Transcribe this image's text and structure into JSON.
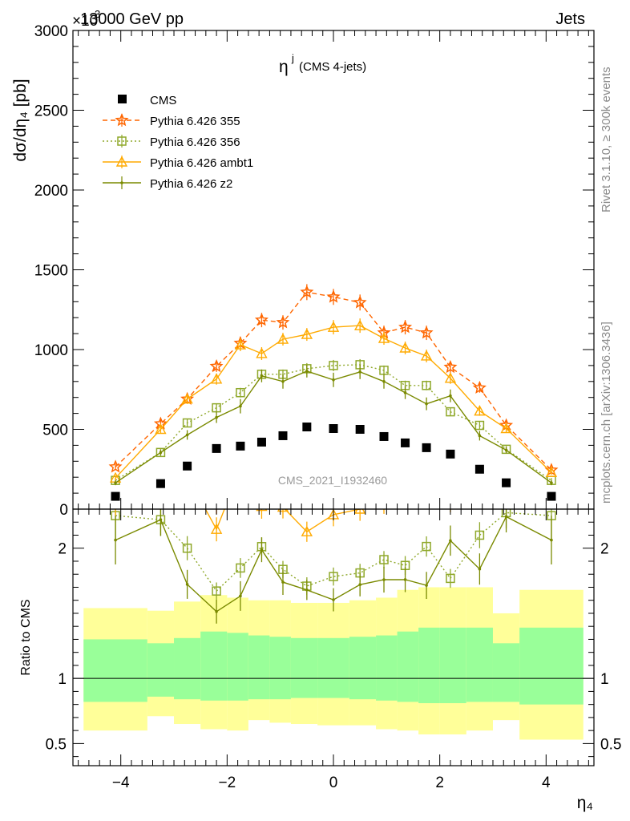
{
  "header": {
    "energy_label": "13000 GeV pp",
    "exponent_label": "×10",
    "exponent_power": "3",
    "process_label": "Jets"
  },
  "side_labels": {
    "rivet": "Rivet 3.1.10, ≥ 300k events",
    "source": "mcplots.cern.ch [arXiv:1306.3436]"
  },
  "watermark": "CMS_2021_I1932460",
  "chart_data": {
    "type": "line",
    "title_main": "η",
    "title_sup": "j",
    "title_note": "(CMS 4-jets)",
    "ylabel": "dσ/dη₄ [pb]",
    "xlabel": "η₄",
    "ratio_ylabel": "Ratio to CMS",
    "xlim": [
      -4.9,
      4.9
    ],
    "ylim": [
      0,
      3000
    ],
    "ratio_ylim": [
      0.33,
      2.3
    ],
    "x_ticks": [
      -4,
      -2,
      0,
      2,
      4
    ],
    "x_tick_labels": [
      "−4",
      "−2",
      "0",
      "2",
      "4"
    ],
    "y_ticks": [
      0,
      500,
      1000,
      1500,
      2000,
      2500,
      3000
    ],
    "y_tick_labels": [
      "0",
      "500",
      "1000",
      "1500",
      "2000",
      "2500",
      "3000"
    ],
    "ratio_ticks": [
      0.5,
      1,
      2
    ],
    "ratio_tick_labels": [
      "0.5",
      "1",
      "2"
    ],
    "x": [
      -4.1,
      -3.25,
      -2.75,
      -2.2,
      -1.75,
      -1.35,
      -0.95,
      -0.5,
      0,
      0.5,
      0.95,
      1.35,
      1.75,
      2.2,
      2.75,
      3.25,
      4.1
    ],
    "bin_edges": [
      -4.7,
      -3.5,
      -3.0,
      -2.5,
      -2.0,
      -1.6,
      -1.2,
      -0.8,
      -0.3,
      0.3,
      0.8,
      1.2,
      1.6,
      2.0,
      2.5,
      3.0,
      3.5,
      4.7
    ],
    "data": {
      "name": "CMS",
      "values": [
        80,
        160,
        270,
        380,
        395,
        420,
        460,
        515,
        505,
        500,
        455,
        415,
        385,
        345,
        250,
        165,
        80
      ]
    },
    "series": [
      {
        "name": "Pythia 6.426 355",
        "color": "#ff6600",
        "dash": "6,4",
        "marker": "star",
        "values": [
          265,
          535,
          690,
          895,
          1040,
          1185,
          1170,
          1360,
          1330,
          1295,
          1105,
          1140,
          1105,
          890,
          760,
          525,
          245
        ],
        "errors": [
          20,
          25,
          30,
          35,
          40,
          45,
          45,
          50,
          50,
          50,
          45,
          45,
          45,
          35,
          30,
          25,
          20
        ]
      },
      {
        "name": "Pythia 6.426 356",
        "color": "#8fa82a",
        "dash": "2,3",
        "marker": "square",
        "values": [
          180,
          355,
          540,
          635,
          730,
          845,
          845,
          880,
          900,
          905,
          870,
          775,
          775,
          610,
          525,
          375,
          180
        ],
        "errors": [
          15,
          20,
          25,
          25,
          30,
          30,
          30,
          35,
          35,
          35,
          30,
          30,
          30,
          25,
          25,
          20,
          15
        ]
      },
      {
        "name": "Pythia 6.426 ambt1",
        "color": "#ffaa00",
        "dash": "",
        "marker": "triangle",
        "values": [
          195,
          500,
          690,
          815,
          1030,
          975,
          1065,
          1095,
          1140,
          1150,
          1070,
          1010,
          960,
          820,
          615,
          505,
          230
        ],
        "errors": [
          15,
          25,
          30,
          35,
          40,
          40,
          40,
          40,
          45,
          45,
          40,
          40,
          40,
          35,
          30,
          25,
          15
        ]
      },
      {
        "name": "Pythia 6.426 z2",
        "color": "#7a8a00",
        "dash": "",
        "marker": "dot",
        "values": [
          165,
          355,
          465,
          575,
          645,
          835,
          800,
          865,
          810,
          860,
          800,
          730,
          660,
          710,
          460,
          370,
          165
        ],
        "errors": [
          15,
          20,
          30,
          35,
          45,
          40,
          45,
          40,
          45,
          45,
          45,
          40,
          40,
          40,
          30,
          20,
          15
        ]
      }
    ],
    "ratio_bands": {
      "inner_color": "#99ff99",
      "outer_color": "#ffff99",
      "inner_hi": [
        1.3,
        1.27,
        1.31,
        1.36,
        1.35,
        1.33,
        1.32,
        1.31,
        1.31,
        1.32,
        1.33,
        1.36,
        1.39,
        1.39,
        1.39,
        1.27,
        1.39
      ],
      "inner_lo": [
        0.82,
        0.86,
        0.84,
        0.83,
        0.83,
        0.84,
        0.84,
        0.85,
        0.85,
        0.84,
        0.83,
        0.82,
        0.81,
        0.81,
        0.82,
        0.82,
        0.8
      ],
      "outer_hi": [
        1.54,
        1.52,
        1.59,
        1.64,
        1.62,
        1.6,
        1.6,
        1.58,
        1.58,
        1.6,
        1.62,
        1.68,
        1.7,
        1.7,
        1.7,
        1.5,
        1.68
      ],
      "outer_lo": [
        0.6,
        0.71,
        0.65,
        0.61,
        0.6,
        0.68,
        0.66,
        0.65,
        0.64,
        0.64,
        0.61,
        0.6,
        0.57,
        0.57,
        0.6,
        0.68,
        0.53
      ]
    },
    "legend_position": "top-left"
  }
}
